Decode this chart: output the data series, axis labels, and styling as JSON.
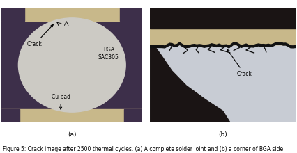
{
  "fig_width": 4.26,
  "fig_height": 2.2,
  "dpi": 100,
  "background_color": "#ffffff",
  "caption_prefix": "Figure 5: ",
  "caption_body": "Crack image after 2500 thermal cycles. (a) A complete solder joint and (b) a corner of BGA side.",
  "caption_fontsize": 5.5,
  "label_a": "(a)",
  "label_b": "(b)",
  "label_fontsize": 6.5,
  "panel_a": {
    "bg_color": "#3d2f4a",
    "solder_color": "#cccac4",
    "pad_color": "#c8b88a",
    "top_strip_color": "#3d2f4a",
    "top_pad_color": "#c8b88a",
    "label_crack": "Crack",
    "label_bga": "BGA\nSAC305",
    "label_cu": "Cu pad",
    "annotation_fontsize": 5.5
  },
  "panel_b": {
    "bg_dark": "#1a1414",
    "bg_light": "#c8ccd4",
    "pad_color": "#c8b88a",
    "crack_color": "#111111",
    "label_crack": "Crack",
    "annotation_fontsize": 5.5
  }
}
